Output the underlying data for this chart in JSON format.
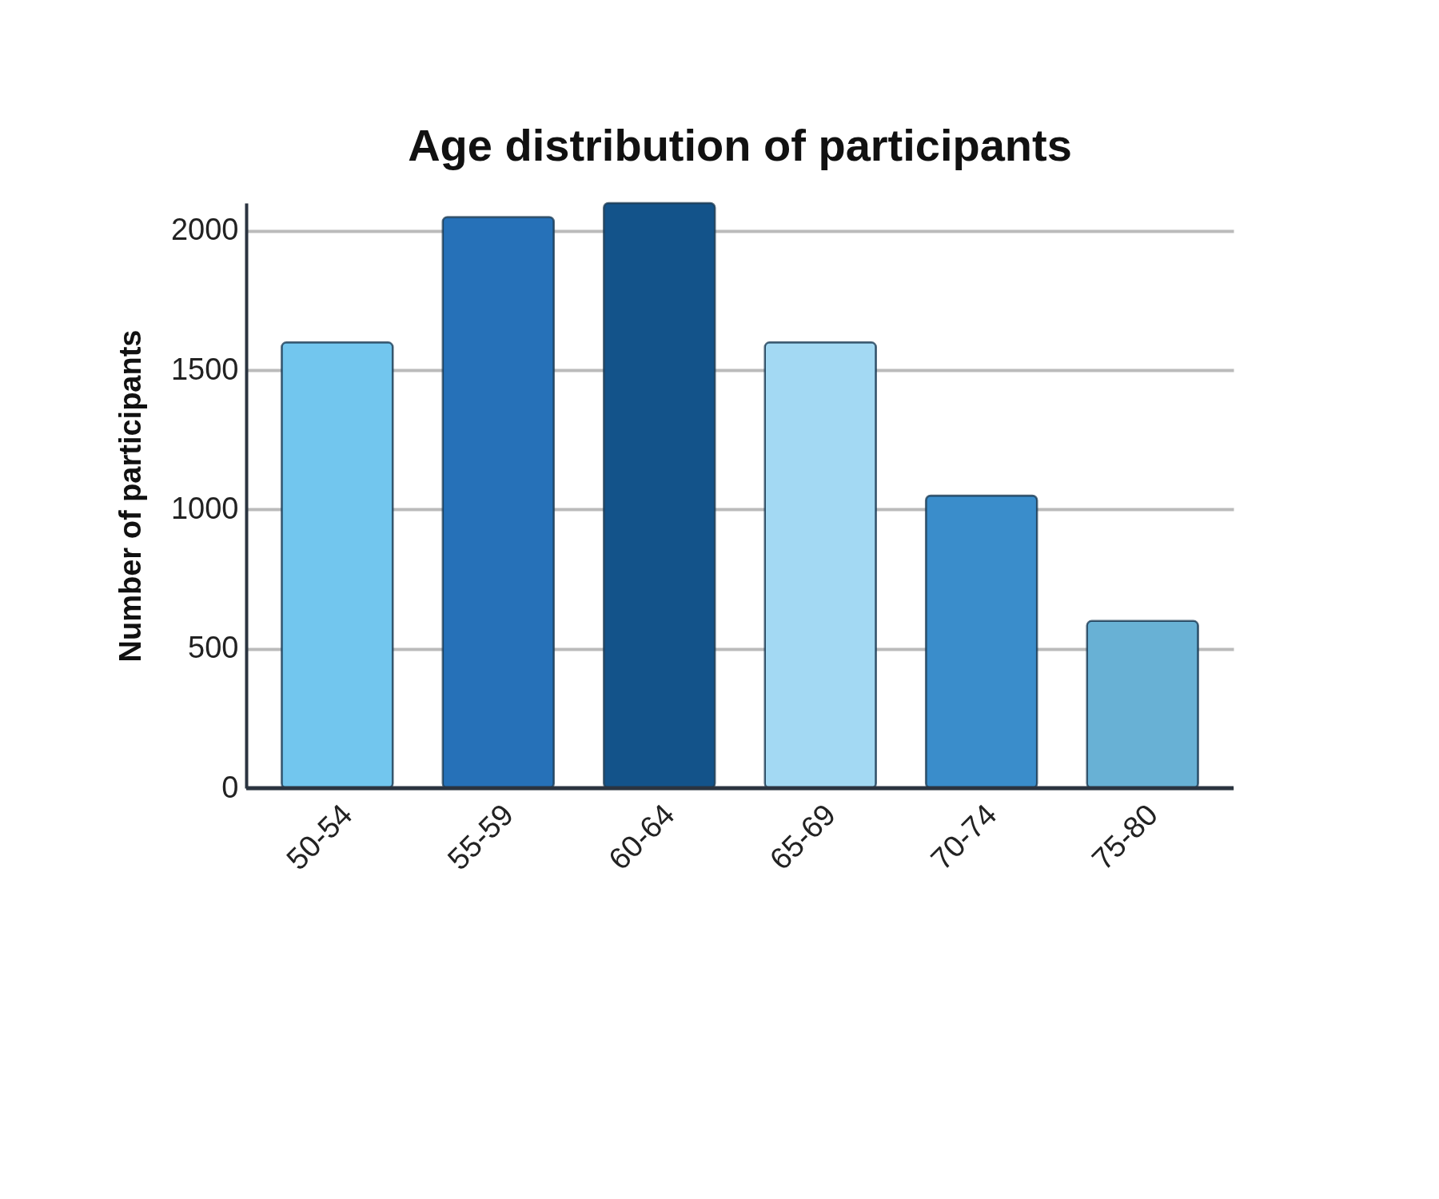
{
  "chart_data": {
    "type": "bar",
    "title": "Age distribution of participants",
    "ylabel": "Number of participants",
    "categories": [
      "50-54",
      "55-59",
      "60-64",
      "65-69",
      "70-74",
      "75-80"
    ],
    "values": [
      1600,
      2050,
      2100,
      1600,
      1050,
      600
    ],
    "colors": [
      "#72c6ee",
      "#2671b8",
      "#13538a",
      "#a3d9f3",
      "#3a8dcb",
      "#68b1d5"
    ],
    "ylim": [
      0,
      2100
    ],
    "yticks": [
      0,
      500,
      1000,
      1500,
      2000
    ],
    "grid": "y"
  }
}
